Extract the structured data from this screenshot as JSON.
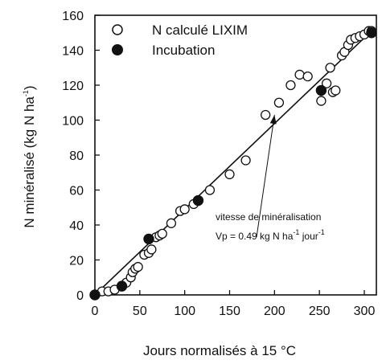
{
  "chart_data": {
    "type": "scatter",
    "xlabel": "Jours normalisés à 15 °C",
    "ylabel": "N minéralisé (kg N ha",
    "ylabel_sup": "-1",
    "ylabel_end": ")",
    "xlim": [
      0,
      310
    ],
    "ylim": [
      0,
      160
    ],
    "x_ticks": [
      0,
      50,
      100,
      150,
      200,
      250,
      300
    ],
    "y_ticks": [
      0,
      20,
      40,
      60,
      80,
      100,
      120,
      140,
      160
    ],
    "grid": false,
    "legend_position": "top-left",
    "series": [
      {
        "name": "N calculé LIXIM",
        "marker": "open-circle",
        "points": [
          [
            0,
            0
          ],
          [
            8,
            2
          ],
          [
            15,
            2
          ],
          [
            22,
            3
          ],
          [
            30,
            5
          ],
          [
            35,
            7
          ],
          [
            40,
            10
          ],
          [
            42,
            13
          ],
          [
            45,
            15
          ],
          [
            48,
            16
          ],
          [
            55,
            23
          ],
          [
            60,
            24
          ],
          [
            63,
            26
          ],
          [
            68,
            33
          ],
          [
            72,
            34
          ],
          [
            75,
            35
          ],
          [
            85,
            41
          ],
          [
            95,
            48
          ],
          [
            100,
            49
          ],
          [
            110,
            52
          ],
          [
            128,
            60
          ],
          [
            150,
            69
          ],
          [
            168,
            77
          ],
          [
            190,
            103
          ],
          [
            205,
            110
          ],
          [
            218,
            120
          ],
          [
            228,
            126
          ],
          [
            237,
            125
          ],
          [
            252,
            111
          ],
          [
            258,
            121
          ],
          [
            262,
            130
          ],
          [
            265,
            116
          ],
          [
            268,
            117
          ],
          [
            275,
            137
          ],
          [
            278,
            139
          ],
          [
            282,
            143
          ],
          [
            285,
            146
          ],
          [
            290,
            147
          ],
          [
            295,
            148
          ],
          [
            300,
            149
          ],
          [
            305,
            151
          ],
          [
            308,
            151
          ]
        ]
      },
      {
        "name": "Incubation",
        "marker": "filled-circle",
        "points": [
          [
            0,
            0
          ],
          [
            30,
            5
          ],
          [
            60,
            32
          ],
          [
            115,
            54
          ],
          [
            252,
            117
          ],
          [
            308,
            150
          ]
        ]
      }
    ],
    "regression_line": {
      "x": [
        0,
        308
      ],
      "y": [
        0,
        151
      ]
    },
    "annotation": {
      "line1": "vitesse de minéralisation",
      "line2_prefix": "Vp = 0.49 kg N ha",
      "line2_sup1": "-1",
      "line2_mid": " jour",
      "line2_sup2": "-1",
      "target": [
        200,
        103
      ],
      "arrow_from": [
        180,
        33
      ]
    }
  }
}
